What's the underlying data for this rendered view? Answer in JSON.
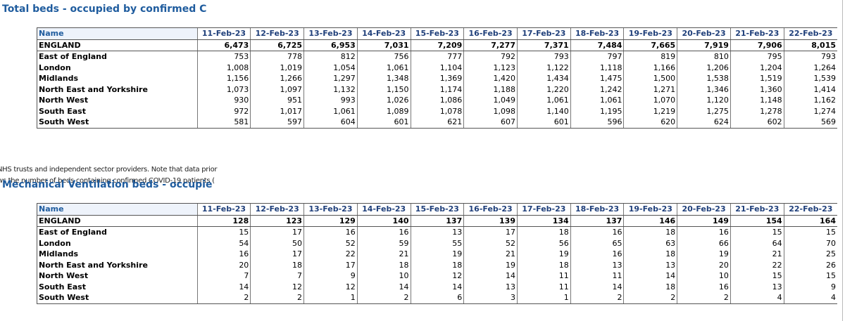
{
  "sections": [
    {
      "title": "Total beds - occupied by confirmed C",
      "table": {
        "header": [
          "Name",
          "11-Feb-23",
          "12-Feb-23",
          "13-Feb-23",
          "14-Feb-23",
          "15-Feb-23",
          "16-Feb-23",
          "17-Feb-23",
          "18-Feb-23",
          "19-Feb-23",
          "20-Feb-23",
          "21-Feb-23",
          "22-Feb-23"
        ],
        "rows": [
          [
            "ENGLAND",
            "6,473",
            "6,725",
            "6,953",
            "7,031",
            "7,209",
            "7,277",
            "7,371",
            "7,484",
            "7,665",
            "7,919",
            "7,906",
            "8,015"
          ],
          [
            "East of England",
            "753",
            "778",
            "812",
            "756",
            "777",
            "792",
            "793",
            "797",
            "819",
            "810",
            "795",
            "793"
          ],
          [
            "London",
            "1,008",
            "1,019",
            "1,054",
            "1,061",
            "1,104",
            "1,123",
            "1,122",
            "1,118",
            "1,166",
            "1,206",
            "1,204",
            "1,264"
          ],
          [
            "Midlands",
            "1,156",
            "1,266",
            "1,297",
            "1,348",
            "1,369",
            "1,420",
            "1,434",
            "1,475",
            "1,500",
            "1,538",
            "1,519",
            "1,539"
          ],
          [
            "North East and Yorkshire",
            "1,073",
            "1,097",
            "1,132",
            "1,150",
            "1,174",
            "1,188",
            "1,220",
            "1,242",
            "1,271",
            "1,346",
            "1,360",
            "1,414"
          ],
          [
            "North West",
            "930",
            "951",
            "993",
            "1,026",
            "1,086",
            "1,049",
            "1,061",
            "1,061",
            "1,070",
            "1,120",
            "1,148",
            "1,162"
          ],
          [
            "South East",
            "972",
            "1,017",
            "1,061",
            "1,089",
            "1,078",
            "1,098",
            "1,140",
            "1,195",
            "1,219",
            "1,275",
            "1,278",
            "1,274"
          ],
          [
            "South West",
            "581",
            "597",
            "604",
            "601",
            "621",
            "607",
            "601",
            "596",
            "620",
            "624",
            "602",
            "569"
          ]
        ]
      }
    },
    {
      "title": "Mechanical Ventilation beds - occupie",
      "table": {
        "header": [
          "Name",
          "11-Feb-23",
          "12-Feb-23",
          "13-Feb-23",
          "14-Feb-23",
          "15-Feb-23",
          "16-Feb-23",
          "17-Feb-23",
          "18-Feb-23",
          "19-Feb-23",
          "20-Feb-23",
          "21-Feb-23",
          "22-Feb-23"
        ],
        "rows": [
          [
            "ENGLAND",
            "128",
            "123",
            "129",
            "140",
            "137",
            "139",
            "134",
            "137",
            "146",
            "149",
            "154",
            "164"
          ],
          [
            "East of England",
            "15",
            "17",
            "16",
            "16",
            "13",
            "17",
            "18",
            "16",
            "18",
            "16",
            "15",
            "15"
          ],
          [
            "London",
            "54",
            "50",
            "52",
            "59",
            "55",
            "52",
            "56",
            "65",
            "63",
            "66",
            "64",
            "70"
          ],
          [
            "Midlands",
            "16",
            "17",
            "22",
            "21",
            "19",
            "21",
            "19",
            "16",
            "18",
            "19",
            "21",
            "25"
          ],
          [
            "North East and Yorkshire",
            "20",
            "18",
            "17",
            "18",
            "18",
            "19",
            "18",
            "13",
            "13",
            "20",
            "22",
            "26"
          ],
          [
            "North West",
            "7",
            "7",
            "9",
            "10",
            "12",
            "14",
            "11",
            "11",
            "14",
            "10",
            "15",
            "15"
          ],
          [
            "South East",
            "14",
            "12",
            "12",
            "14",
            "14",
            "13",
            "11",
            "14",
            "18",
            "16",
            "13",
            "9"
          ],
          [
            "South West",
            "2",
            "2",
            "1",
            "2",
            "6",
            "3",
            "1",
            "2",
            "2",
            "2",
            "4",
            "4"
          ]
        ]
      }
    }
  ],
  "notes": [
    "NHS trusts and independent sector providers. Note that data prior",
    "ws the number of beds containing confirmed COVID-19 patients ("
  ]
}
